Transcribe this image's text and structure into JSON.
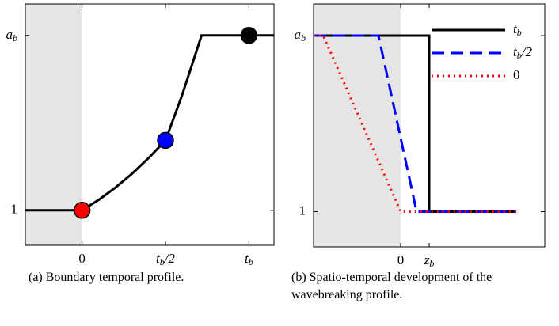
{
  "chart_data": [
    {
      "type": "line",
      "caption": "(a) Boundary temporal profile.",
      "xlim": [
        -0.34,
        1.15
      ],
      "ylim": [
        0.8,
        2.18
      ],
      "xticks": [
        0,
        {
          "value": 0.5,
          "label": "t_b/2"
        },
        {
          "value": 1,
          "label": "t_b"
        }
      ],
      "yticks": [
        1,
        {
          "value": 2,
          "label": "a_b"
        }
      ],
      "shade_to": 0,
      "shade_color": "#e5e5e5",
      "series": [
        {
          "color": "#000000",
          "style": "solid",
          "x": [
            -0.34,
            0,
            0.1,
            0.2,
            0.3,
            0.4,
            0.5,
            0.6,
            0.716,
            1.15
          ],
          "values": [
            1,
            1,
            1.06,
            1.13,
            1.21,
            1.3,
            1.4,
            1.66,
            2,
            2
          ]
        }
      ],
      "points": {
        "x": [
          0,
          0.5,
          1
        ],
        "values": [
          1,
          1.4,
          2
        ],
        "colors": [
          "#ff0000",
          "#0000ff",
          "#000000"
        ]
      }
    },
    {
      "type": "line",
      "caption": "(b) Spatio-temporal development of the wavebreaking profile.",
      "xlim": [
        -3.06,
        5.06
      ],
      "ylim": [
        0.8,
        2.18
      ],
      "xticks": [
        0,
        {
          "value": 1,
          "label": "z_b"
        }
      ],
      "yticks": [
        1,
        {
          "value": 2,
          "label": "a_b"
        }
      ],
      "shade_to": 0,
      "shade_color": "#e5e5e5",
      "legend": "upper right",
      "series": [
        {
          "name": "t_b",
          "color": "#000000",
          "style": "solid",
          "x": [
            -3.06,
            1,
            1,
            4.06
          ],
          "values": [
            2,
            2,
            1,
            1
          ]
        },
        {
          "name": "t_b/2",
          "color": "#0000ff",
          "style": "dashed",
          "x": [
            -3.06,
            -0.78,
            0.56,
            4.06
          ],
          "values": [
            2,
            2,
            1,
            1
          ]
        },
        {
          "name": "0",
          "color": "#ff0000",
          "style": "dotted",
          "x": [
            -3.06,
            -2.72,
            0,
            4.06
          ],
          "values": [
            2,
            2,
            1,
            1
          ]
        }
      ]
    }
  ]
}
